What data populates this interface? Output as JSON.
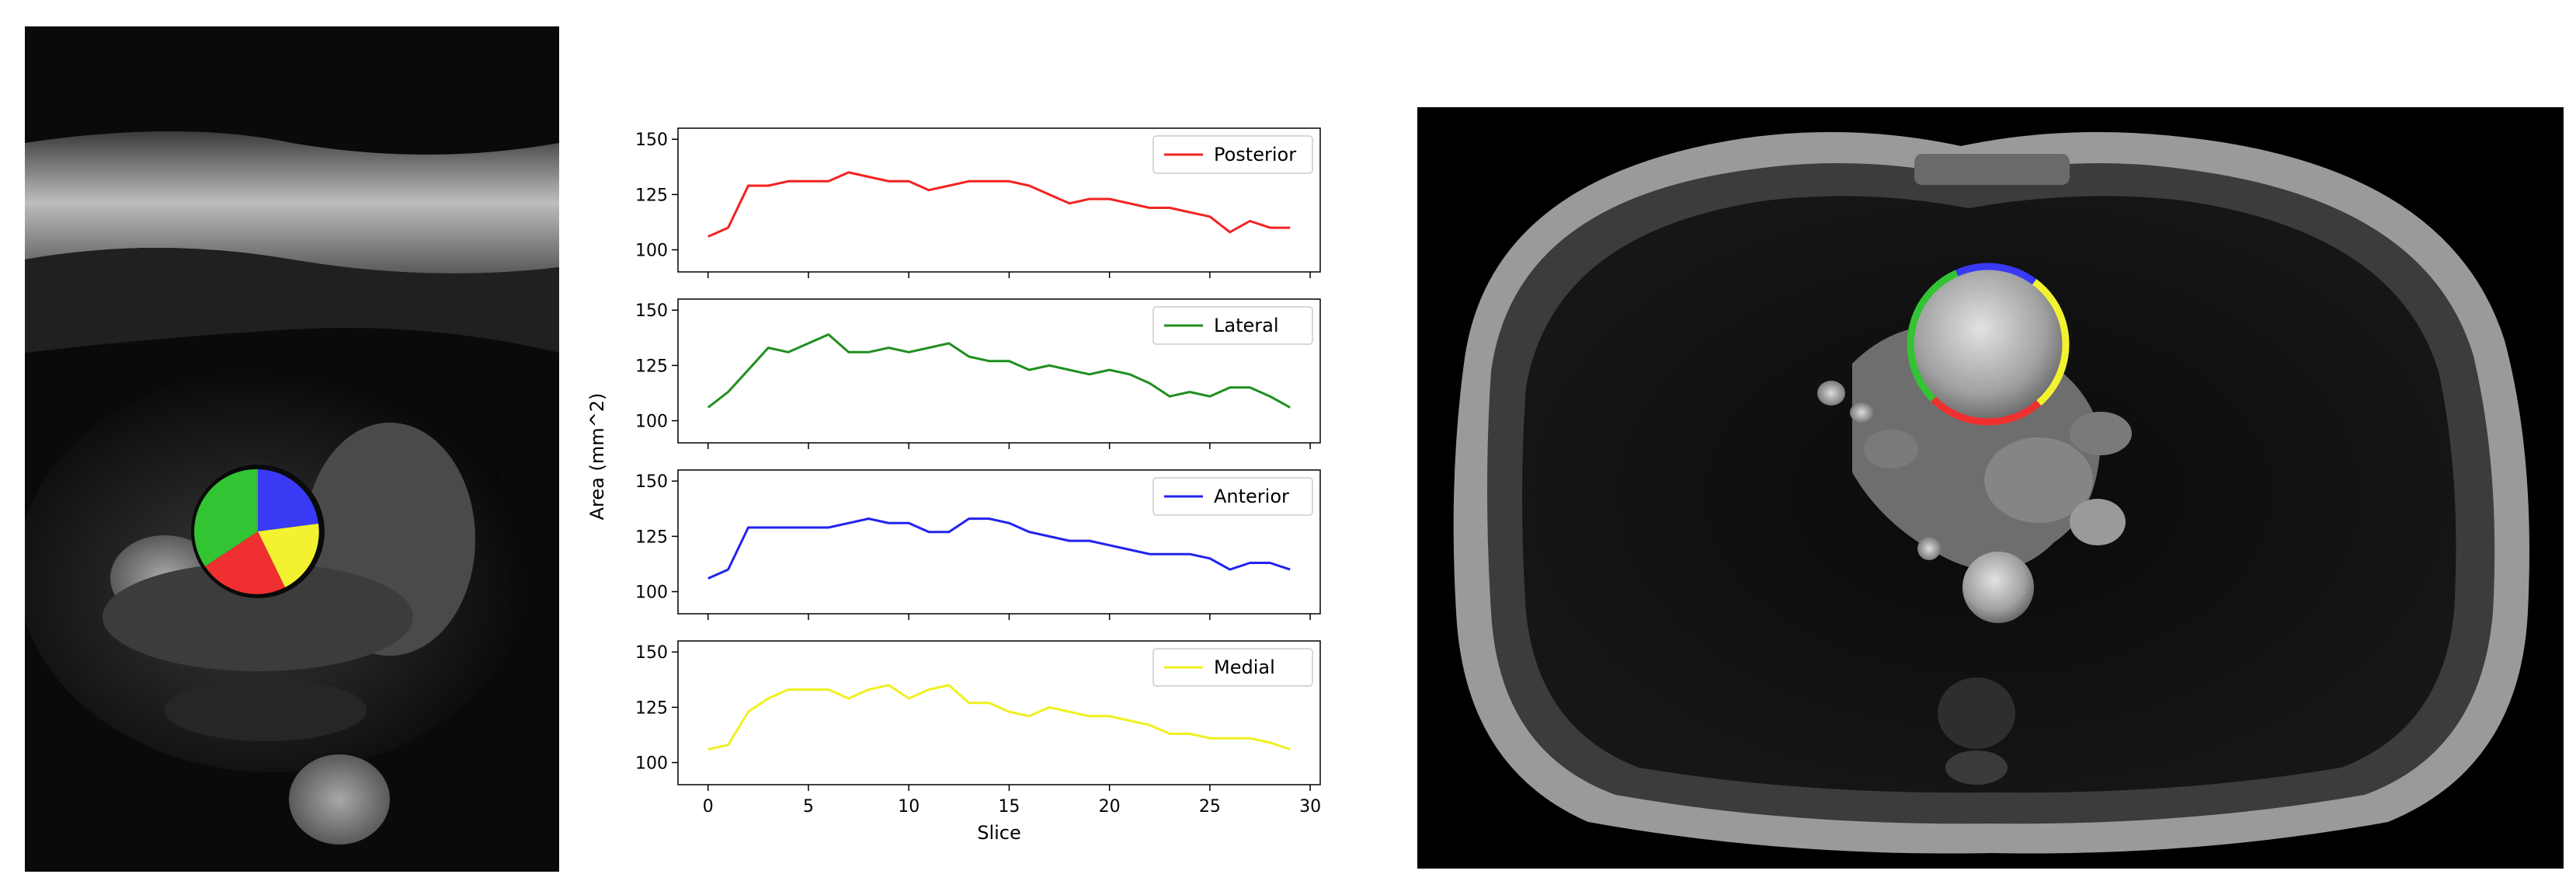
{
  "colors": {
    "posterior": "#f22222",
    "lateral": "#1f8f1f",
    "anterior": "#2222ee",
    "medial": "#f0f020"
  },
  "images": {
    "left": {
      "name": "cardiac-mri-cross-section-segmented",
      "segments": [
        "posterior",
        "lateral",
        "anterior",
        "medial"
      ]
    },
    "right": {
      "name": "axial-chest-mri-with-segmented-contour",
      "segments": [
        "posterior",
        "lateral",
        "anterior",
        "medial"
      ]
    }
  },
  "chart_data": {
    "type": "line",
    "title": "",
    "xlabel": "Slice",
    "ylabel": "Area (mm^2)",
    "xlim": [
      -1.5,
      30.5
    ],
    "ylim": [
      90,
      155
    ],
    "xticks": [
      0,
      5,
      10,
      15,
      20,
      25,
      30
    ],
    "yticks": [
      100,
      125,
      150
    ],
    "x": [
      0,
      1,
      2,
      3,
      4,
      5,
      6,
      7,
      8,
      9,
      10,
      11,
      12,
      13,
      14,
      15,
      16,
      17,
      18,
      19,
      20,
      21,
      22,
      23,
      24,
      25,
      26,
      27,
      28,
      29
    ],
    "series": [
      {
        "name": "Posterior",
        "color": "#f22222",
        "legend_position": "top-right",
        "values": [
          106,
          110,
          129,
          129,
          131,
          131,
          131,
          135,
          133,
          131,
          131,
          127,
          129,
          131,
          131,
          131,
          129,
          125,
          121,
          123,
          123,
          121,
          119,
          119,
          117,
          115,
          108,
          113,
          110,
          110
        ]
      },
      {
        "name": "Lateral",
        "color": "#1f8f1f",
        "legend_position": "top-right",
        "values": [
          106,
          113,
          123,
          133,
          131,
          135,
          139,
          131,
          131,
          133,
          131,
          133,
          135,
          129,
          127,
          127,
          123,
          125,
          123,
          121,
          123,
          121,
          117,
          111,
          113,
          111,
          115,
          115,
          111,
          106
        ]
      },
      {
        "name": "Anterior",
        "color": "#2222ee",
        "legend_position": "top-right",
        "values": [
          106,
          110,
          129,
          129,
          129,
          129,
          129,
          131,
          133,
          131,
          131,
          127,
          127,
          133,
          133,
          131,
          127,
          125,
          123,
          123,
          121,
          119,
          117,
          117,
          117,
          115,
          110,
          113,
          113,
          110
        ]
      },
      {
        "name": "Medial",
        "color": "#f0f020",
        "legend_position": "top-right",
        "values": [
          106,
          108,
          123,
          129,
          133,
          133,
          133,
          129,
          133,
          135,
          129,
          133,
          135,
          127,
          127,
          123,
          121,
          125,
          123,
          121,
          121,
          119,
          117,
          113,
          113,
          111,
          111,
          111,
          109,
          106
        ]
      }
    ]
  }
}
